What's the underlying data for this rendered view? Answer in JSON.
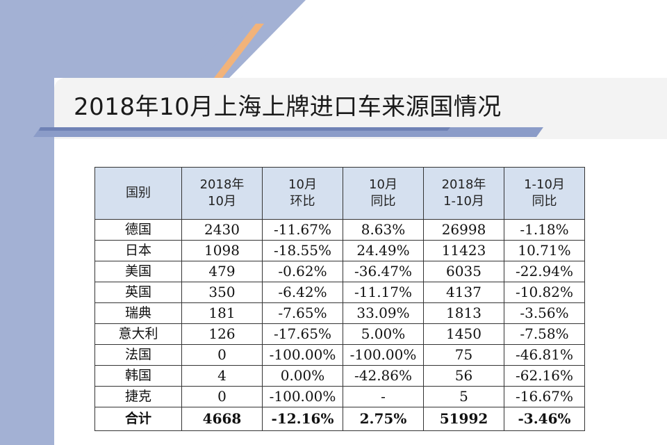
{
  "title": "2018年10月上海上牌进口车来源国情况",
  "colors": {
    "accent_blue": "#a3b1d4",
    "accent_orange": "#f2b37a",
    "header_bg": "#d5e0ef"
  },
  "table": {
    "headers": [
      {
        "line1": "国别",
        "line2": ""
      },
      {
        "line1": "2018年",
        "line2": "10月"
      },
      {
        "line1": "10月",
        "line2": "环比"
      },
      {
        "line1": "10月",
        "line2": "同比"
      },
      {
        "line1": "2018年",
        "line2": "1-10月"
      },
      {
        "line1": "1-10月",
        "line2": "同比"
      }
    ],
    "rows": [
      [
        "德国",
        "2430",
        "-11.67%",
        "8.63%",
        "26998",
        "-1.18%"
      ],
      [
        "日本",
        "1098",
        "-18.55%",
        "24.49%",
        "11423",
        "10.71%"
      ],
      [
        "美国",
        "479",
        "-0.62%",
        "-36.47%",
        "6035",
        "-22.94%"
      ],
      [
        "英国",
        "350",
        "-6.42%",
        "-11.17%",
        "4137",
        "-10.82%"
      ],
      [
        "瑞典",
        "181",
        "-7.65%",
        "33.09%",
        "1813",
        "-3.56%"
      ],
      [
        "意大利",
        "126",
        "-17.65%",
        "5.00%",
        "1450",
        "-7.58%"
      ],
      [
        "法国",
        "0",
        "-100.00%",
        "-100.00%",
        "75",
        "-46.81%"
      ],
      [
        "韩国",
        "4",
        "0.00%",
        "-42.86%",
        "56",
        "-62.16%"
      ],
      [
        "捷克",
        "0",
        "-100.00%",
        "-",
        "5",
        "-16.67%"
      ]
    ],
    "total": [
      "合计",
      "4668",
      "-12.16%",
      "2.75%",
      "51992",
      "-3.46%"
    ]
  }
}
